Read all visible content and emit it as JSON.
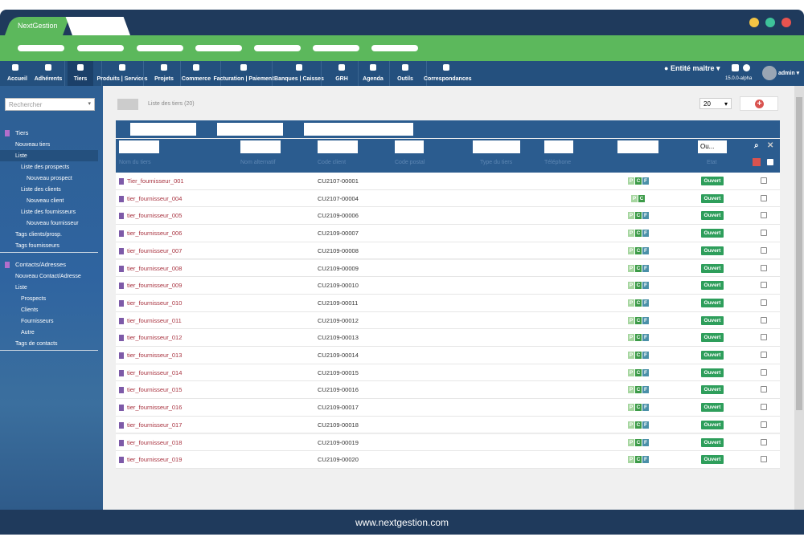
{
  "window": {
    "tab": "NextGestion"
  },
  "nav": {
    "items": [
      "Accueil",
      "Adhérents",
      "Tiers",
      "Produits | Services",
      "Projets",
      "Commerce",
      "Facturation | Paiement",
      "Banques | Caisses",
      "GRH",
      "Agenda",
      "Outils",
      "Correspondances"
    ],
    "entity": "Entité maître",
    "version": "15.0.0-alpha",
    "user": "admin"
  },
  "sidebar": {
    "search": "Rechercher",
    "sections": [
      {
        "title": "Tiers",
        "items": [
          {
            "label": "Nouveau tiers",
            "level": 0
          },
          {
            "label": "Liste",
            "level": 0
          },
          {
            "label": "Liste des prospects",
            "level": 1
          },
          {
            "label": "Nouveau prospect",
            "level": 2
          },
          {
            "label": "Liste des clients",
            "level": 1
          },
          {
            "label": "Nouveau client",
            "level": 2
          },
          {
            "label": "Liste des fournisseurs",
            "level": 1
          },
          {
            "label": "Nouveau fournisseur",
            "level": 2
          },
          {
            "label": "Tags clients/prosp.",
            "level": 0
          },
          {
            "label": "Tags fournisseurs",
            "level": 0
          }
        ]
      },
      {
        "title": "Contacts/Adresses",
        "items": [
          {
            "label": "Nouveau Contact/Adresse",
            "level": 0
          },
          {
            "label": "Liste",
            "level": 0
          },
          {
            "label": "Prospects",
            "level": 1
          },
          {
            "label": "Clients",
            "level": 1
          },
          {
            "label": "Fournisseurs",
            "level": 1
          },
          {
            "label": "Autre",
            "level": 1
          },
          {
            "label": "Tags de contacts",
            "level": 0
          }
        ]
      }
    ]
  },
  "list": {
    "title": "Liste des tiers (20)",
    "page_size": "20",
    "status_filter": "Ou...",
    "columns": [
      "Nom du tiers",
      "Nom alternatif",
      "Code client",
      "Code postal",
      "Type du tiers",
      "Téléphone",
      "Etat"
    ],
    "rows": [
      {
        "name": "Tier_fournisseur_001",
        "code": "CU2107-00001",
        "badges": [
          "P",
          "C",
          "F"
        ],
        "status": "Ouvert"
      },
      {
        "name": "tier_fournisseur_004",
        "code": "CU2107-00004",
        "badges": [
          "P",
          "C"
        ],
        "status": "Ouvert"
      },
      {
        "name": "tier_fournisseur_005",
        "code": "CU2109-00006",
        "badges": [
          "P",
          "C",
          "F"
        ],
        "status": "Ouvert"
      },
      {
        "name": "tier_fournisseur_006",
        "code": "CU2109-00007",
        "badges": [
          "P",
          "C",
          "F"
        ],
        "status": "Ouvert"
      },
      {
        "name": "tier_fournisseur_007",
        "code": "CU2109-00008",
        "badges": [
          "P",
          "C",
          "F"
        ],
        "status": "Ouvert"
      },
      {
        "name": "tier_fournisseur_008",
        "code": "CU2109-00009",
        "badges": [
          "P",
          "C",
          "F"
        ],
        "status": "Ouvert"
      },
      {
        "name": "tier_fournisseur_009",
        "code": "CU2109-00010",
        "badges": [
          "P",
          "C",
          "F"
        ],
        "status": "Ouvert"
      },
      {
        "name": "tier_fournisseur_010",
        "code": "CU2109-00011",
        "badges": [
          "P",
          "C",
          "F"
        ],
        "status": "Ouvert"
      },
      {
        "name": "tier_fournisseur_011",
        "code": "CU2109-00012",
        "badges": [
          "P",
          "C",
          "F"
        ],
        "status": "Ouvert"
      },
      {
        "name": "tier_fournisseur_012",
        "code": "CU2109-00013",
        "badges": [
          "P",
          "C",
          "F"
        ],
        "status": "Ouvert"
      },
      {
        "name": "tier_fournisseur_013",
        "code": "CU2109-00014",
        "badges": [
          "P",
          "C",
          "F"
        ],
        "status": "Ouvert"
      },
      {
        "name": "tier_fournisseur_014",
        "code": "CU2109-00015",
        "badges": [
          "P",
          "C",
          "F"
        ],
        "status": "Ouvert"
      },
      {
        "name": "tier_fournisseur_015",
        "code": "CU2109-00016",
        "badges": [
          "P",
          "C",
          "F"
        ],
        "status": "Ouvert"
      },
      {
        "name": "tier_fournisseur_016",
        "code": "CU2109-00017",
        "badges": [
          "P",
          "C",
          "F"
        ],
        "status": "Ouvert"
      },
      {
        "name": "tier_fournisseur_017",
        "code": "CU2109-00018",
        "badges": [
          "P",
          "C",
          "F"
        ],
        "status": "Ouvert"
      },
      {
        "name": "tier_fournisseur_018",
        "code": "CU2109-00019",
        "badges": [
          "P",
          "C",
          "F"
        ],
        "status": "Ouvert"
      },
      {
        "name": "tier_fournisseur_019",
        "code": "CU2109-00020",
        "badges": [
          "P",
          "C",
          "F"
        ],
        "status": "Ouvert"
      }
    ]
  },
  "footer": {
    "url": "www.nextgestion.com"
  }
}
